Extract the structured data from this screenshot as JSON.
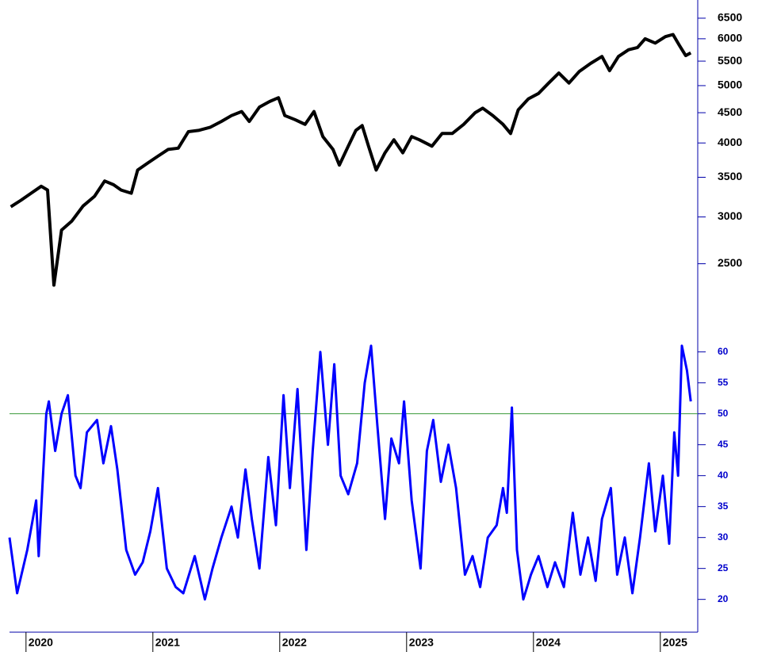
{
  "chart_data": [
    {
      "type": "line",
      "log_scale": true,
      "color": "#000000",
      "x": [
        2019.88,
        2019.96,
        2020.04,
        2020.12,
        2020.17,
        2020.22,
        2020.28,
        2020.36,
        2020.45,
        2020.54,
        2020.62,
        2020.69,
        2020.75,
        2020.83,
        2020.88,
        2020.96,
        2021.04,
        2021.12,
        2021.2,
        2021.28,
        2021.36,
        2021.45,
        2021.54,
        2021.62,
        2021.7,
        2021.76,
        2021.84,
        2021.92,
        2021.99,
        2022.04,
        2022.12,
        2022.2,
        2022.27,
        2022.34,
        2022.42,
        2022.47,
        2022.54,
        2022.6,
        2022.65,
        2022.7,
        2022.76,
        2022.83,
        2022.9,
        2022.97,
        2023.04,
        2023.1,
        2023.2,
        2023.28,
        2023.36,
        2023.45,
        2023.54,
        2023.6,
        2023.68,
        2023.76,
        2023.82,
        2023.88,
        2023.96,
        2024.04,
        2024.12,
        2024.2,
        2024.28,
        2024.36,
        2024.45,
        2024.54,
        2024.6,
        2024.67,
        2024.75,
        2024.82,
        2024.88,
        2024.96,
        2025.04,
        2025.1,
        2025.15,
        2025.2,
        2025.24
      ],
      "values": [
        3120,
        3200,
        3290,
        3380,
        3330,
        2300,
        2850,
        2950,
        3130,
        3250,
        3450,
        3400,
        3330,
        3290,
        3600,
        3700,
        3800,
        3900,
        3920,
        4180,
        4200,
        4250,
        4350,
        4450,
        4520,
        4350,
        4600,
        4700,
        4770,
        4450,
        4380,
        4300,
        4520,
        4100,
        3900,
        3670,
        3950,
        4200,
        4280,
        3950,
        3600,
        3850,
        4050,
        3850,
        4100,
        4050,
        3950,
        4150,
        4150,
        4300,
        4500,
        4580,
        4450,
        4300,
        4150,
        4550,
        4750,
        4850,
        5050,
        5250,
        5050,
        5280,
        5450,
        5600,
        5300,
        5600,
        5750,
        5800,
        6000,
        5900,
        6050,
        6100,
        5850,
        5620,
        5680
      ],
      "xlim": [
        2019.87,
        2025.295
      ],
      "ylim": [
        2030,
        6870
      ],
      "yticks": [
        2500,
        3000,
        3500,
        4000,
        4500,
        5000,
        5500,
        6000,
        6500
      ]
    },
    {
      "type": "line",
      "color": "#0000ff",
      "reference_line": 50,
      "reference_color": "#3a9a3a",
      "x": [
        2019.87,
        2019.93,
        2020.01,
        2020.08,
        2020.1,
        2020.16,
        2020.18,
        2020.23,
        2020.28,
        2020.33,
        2020.39,
        2020.43,
        2020.48,
        2020.56,
        2020.61,
        2020.67,
        2020.72,
        2020.79,
        2020.86,
        2020.92,
        2020.98,
        2021.04,
        2021.11,
        2021.18,
        2021.24,
        2021.33,
        2021.41,
        2021.47,
        2021.54,
        2021.62,
        2021.67,
        2021.73,
        2021.78,
        2021.84,
        2021.91,
        2021.97,
        2022.03,
        2022.08,
        2022.14,
        2022.21,
        2022.26,
        2022.32,
        2022.38,
        2022.43,
        2022.48,
        2022.54,
        2022.61,
        2022.67,
        2022.72,
        2022.77,
        2022.83,
        2022.88,
        2022.94,
        2022.98,
        2023.04,
        2023.11,
        2023.16,
        2023.21,
        2023.27,
        2023.33,
        2023.39,
        2023.46,
        2023.52,
        2023.58,
        2023.64,
        2023.71,
        2023.76,
        2023.79,
        2023.83,
        2023.87,
        2023.92,
        2023.98,
        2024.04,
        2024.11,
        2024.17,
        2024.24,
        2024.31,
        2024.37,
        2024.43,
        2024.49,
        2024.54,
        2024.61,
        2024.66,
        2024.72,
        2024.78,
        2024.84,
        2024.91,
        2024.96,
        2025.02,
        2025.07,
        2025.11,
        2025.14,
        2025.17,
        2025.21,
        2025.24
      ],
      "values": [
        30,
        21,
        28,
        36,
        27,
        50,
        52,
        44,
        50,
        53,
        40,
        38,
        47,
        49,
        42,
        48,
        41,
        28,
        24,
        26,
        31,
        38,
        25,
        22,
        21,
        27,
        20,
        25,
        30,
        35,
        30,
        41,
        33,
        25,
        43,
        32,
        53,
        38,
        54,
        28,
        44,
        60,
        45,
        58,
        40,
        37,
        42,
        55,
        61,
        48,
        33,
        46,
        42,
        52,
        36,
        25,
        44,
        49,
        39,
        45,
        38,
        24,
        27,
        22,
        30,
        32,
        38,
        34,
        51,
        28,
        20,
        24,
        27,
        22,
        26,
        22,
        34,
        24,
        30,
        23,
        33,
        38,
        24,
        30,
        21,
        30,
        42,
        31,
        40,
        29,
        47,
        40,
        61,
        57,
        52
      ],
      "xlim": [
        2019.87,
        2025.295
      ],
      "ylim": [
        15.6,
        65.6
      ],
      "yticks": [
        20,
        25,
        30,
        35,
        40,
        45,
        50,
        55,
        60
      ],
      "xticks": [
        2020,
        2021,
        2022,
        2023,
        2024,
        2025
      ]
    }
  ]
}
